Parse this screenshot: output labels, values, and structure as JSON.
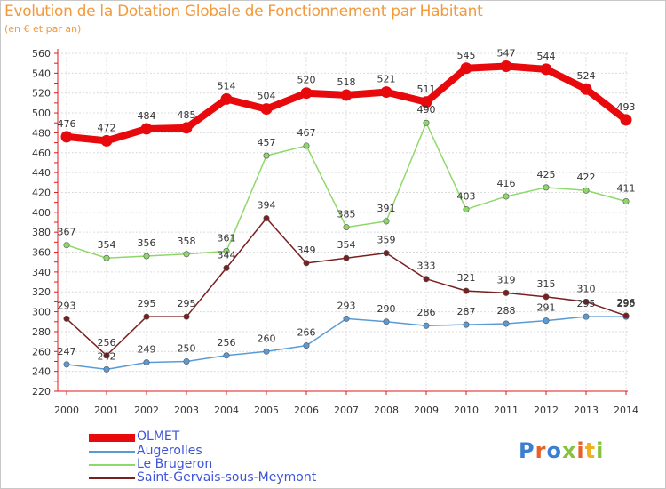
{
  "title": "Evolution de la Dotation Globale de Fonctionnement par Habitant",
  "subtitle": "(en € et par an)",
  "logo_text": "Proxiti",
  "colors": {
    "title": "#f39a3c",
    "axis": "#e0191c",
    "grid": "#dcdcdc",
    "label": "#333333",
    "legend_text": "#3f55d8"
  },
  "chart_data": {
    "type": "line",
    "x": [
      "2000",
      "2001",
      "2002",
      "2003",
      "2004",
      "2005",
      "2006",
      "2007",
      "2008",
      "2009",
      "2010",
      "2011",
      "2012",
      "2013",
      "2014"
    ],
    "ylim": [
      220,
      560
    ],
    "yticks": [
      220,
      240,
      260,
      280,
      300,
      320,
      340,
      360,
      380,
      400,
      420,
      440,
      460,
      480,
      500,
      520,
      540,
      560
    ],
    "grid": true,
    "legend_position": "bottom-left",
    "series": [
      {
        "name": "OLMET",
        "color": "#e8090c",
        "width": 8,
        "values": [
          476,
          472,
          484,
          485,
          514,
          504,
          520,
          518,
          521,
          511,
          545,
          547,
          544,
          524,
          493
        ],
        "labels": [
          "476",
          "472",
          "484",
          "485",
          "514",
          "504",
          "520",
          "518",
          "521",
          "511",
          "545",
          "547",
          "544",
          "524",
          "493"
        ]
      },
      {
        "name": "Augerolles",
        "color": "#5b9bd5",
        "width": 1.5,
        "values": [
          247,
          242,
          249,
          250,
          256,
          260,
          266,
          293,
          290,
          286,
          287,
          288,
          291,
          295,
          295
        ],
        "labels": [
          "247",
          "242",
          "249",
          "250",
          "256",
          "260",
          "266",
          "293",
          "290",
          "286",
          "287",
          "288",
          "291",
          "295",
          "295"
        ]
      },
      {
        "name": "Le Brugeron",
        "color": "#8ed86a",
        "width": 1.5,
        "values": [
          367,
          354,
          356,
          358,
          361,
          457,
          467,
          385,
          391,
          490,
          403,
          416,
          425,
          422,
          411
        ],
        "labels": [
          "367",
          "354",
          "356",
          "358",
          "361",
          "457",
          "467",
          "385",
          "391",
          "490",
          "403",
          "416",
          "425",
          "422",
          "411"
        ]
      },
      {
        "name": "Saint-Gervais-sous-Meymont",
        "color": "#7a1f1f",
        "width": 1.5,
        "values": [
          293,
          256,
          295,
          295,
          344,
          394,
          349,
          354,
          359,
          333,
          321,
          319,
          315,
          310,
          296
        ],
        "labels": [
          "293",
          "256",
          "295",
          "295",
          "344",
          "394",
          "349",
          "354",
          "359",
          "333",
          "321",
          "319",
          "315",
          "310",
          "296"
        ]
      }
    ]
  }
}
